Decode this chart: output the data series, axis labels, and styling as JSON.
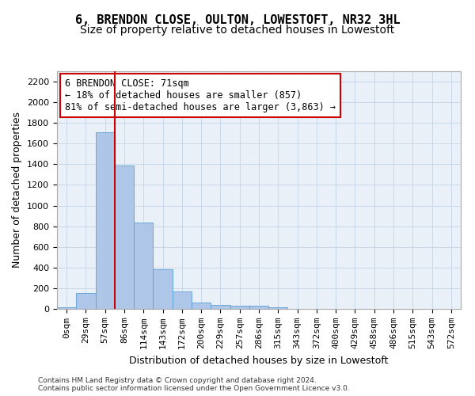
{
  "title1": "6, BRENDON CLOSE, OULTON, LOWESTOFT, NR32 3HL",
  "title2": "Size of property relative to detached houses in Lowestoft",
  "xlabel": "Distribution of detached houses by size in Lowestoft",
  "ylabel": "Number of detached properties",
  "bar_values": [
    15,
    155,
    1710,
    1390,
    835,
    385,
    165,
    65,
    38,
    28,
    28,
    18,
    0,
    0,
    0,
    0,
    0,
    0,
    0,
    0,
    0
  ],
  "x_labels": [
    "0sqm",
    "29sqm",
    "57sqm",
    "86sqm",
    "114sqm",
    "143sqm",
    "172sqm",
    "200sqm",
    "229sqm",
    "257sqm",
    "286sqm",
    "315sqm",
    "343sqm",
    "372sqm",
    "400sqm",
    "429sqm",
    "458sqm",
    "486sqm",
    "515sqm",
    "543sqm",
    "572sqm"
  ],
  "bar_color": "#aec6e8",
  "bar_edge_color": "#5a9fd4",
  "bar_width": 1.0,
  "ylim": [
    0,
    2300
  ],
  "yticks": [
    0,
    200,
    400,
    600,
    800,
    1000,
    1200,
    1400,
    1600,
    1800,
    2000,
    2200
  ],
  "vline_x": 2.5,
  "vline_color": "#cc0000",
  "annotation_text": "6 BRENDON CLOSE: 71sqm\n← 18% of detached houses are smaller (857)\n81% of semi-detached houses are larger (3,863) →",
  "annotation_box_color": "white",
  "annotation_edge_color": "#cc0000",
  "grid_color": "#c8d8e8",
  "background_color": "#eaf0f8",
  "footer_line1": "Contains HM Land Registry data © Crown copyright and database right 2024.",
  "footer_line2": "Contains public sector information licensed under the Open Government Licence v3.0.",
  "title1_fontsize": 11,
  "title2_fontsize": 10,
  "xlabel_fontsize": 9,
  "ylabel_fontsize": 9,
  "tick_fontsize": 8,
  "annotation_fontsize": 8.5,
  "footer_fontsize": 6.5
}
